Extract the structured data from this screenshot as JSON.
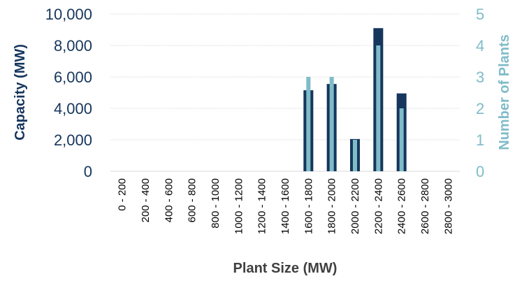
{
  "chart_data": {
    "type": "bar",
    "categories": [
      "0 - 200",
      "200 - 400",
      "400 - 600",
      "600 - 800",
      "800 - 1000",
      "1000 - 1200",
      "1200 - 1400",
      "1400 - 1600",
      "1600 - 1800",
      "1800 - 2000",
      "2000 - 2200",
      "2200 - 2400",
      "2400 - 2600",
      "2600 - 2800",
      "2800 - 3000"
    ],
    "series": [
      {
        "name": "Capacity (MW)",
        "axis": "left",
        "color": "#16365c",
        "values": [
          0,
          0,
          0,
          0,
          0,
          0,
          0,
          0,
          5150,
          5550,
          2050,
          9100,
          4950,
          0,
          0
        ]
      },
      {
        "name": "Number of Plants",
        "axis": "right",
        "color": "#7fbcc8",
        "values": [
          0,
          0,
          0,
          0,
          0,
          0,
          0,
          0,
          3,
          3,
          1,
          4,
          2,
          0,
          0
        ]
      }
    ],
    "xlabel": "Plant Size (MW)",
    "ylabel_left": "Capacity (MW)",
    "ylabel_right": "Number of Plants",
    "ylim_left": [
      0,
      10000
    ],
    "ylim_right": [
      0,
      5
    ],
    "yticks_left": [
      "0",
      "2,000",
      "4,000",
      "6,000",
      "8,000",
      "10,000"
    ],
    "yticks_right": [
      "0",
      "1",
      "2",
      "3",
      "4",
      "5"
    ],
    "grid": true,
    "gridline_color": "#d9d9d9"
  }
}
